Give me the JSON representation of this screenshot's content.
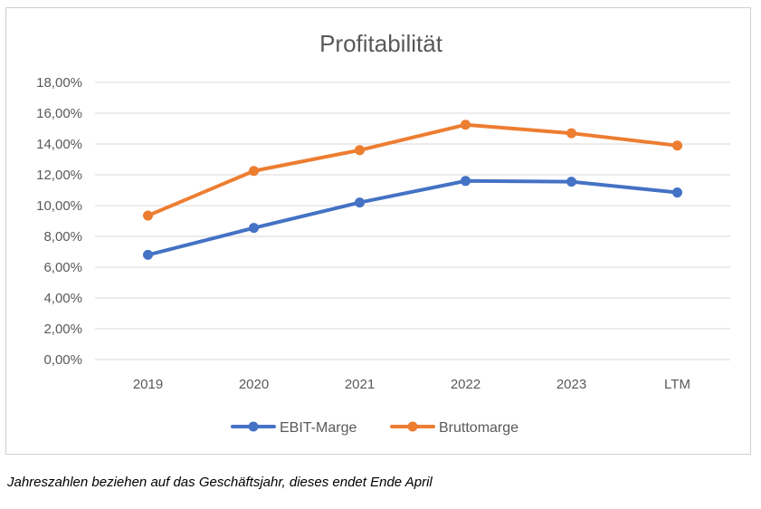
{
  "chart_data": {
    "type": "line",
    "title": "Profitabilität",
    "categories": [
      "2019",
      "2020",
      "2021",
      "2022",
      "2023",
      "LTM"
    ],
    "series": [
      {
        "name": "EBIT-Marge",
        "color": "#4472C4",
        "values": [
          6.8,
          8.55,
          10.2,
          11.6,
          11.55,
          10.85
        ]
      },
      {
        "name": "Bruttomarge",
        "color": "#ED7D31",
        "values": [
          9.35,
          12.25,
          13.6,
          15.25,
          14.7,
          13.9
        ]
      }
    ],
    "ylim": [
      0,
      18
    ],
    "yticks": [
      0,
      2,
      4,
      6,
      8,
      10,
      12,
      14,
      16,
      18
    ],
    "ytick_labels": [
      "0,00%",
      "2,00%",
      "4,00%",
      "6,00%",
      "8,00%",
      "10,00%",
      "12,00%",
      "14,00%",
      "16,00%",
      "18,00%"
    ],
    "grid": true,
    "legend_position": "bottom"
  },
  "footnote": "Jahreszahlen beziehen auf das Geschäftsjahr, dieses endet Ende April"
}
